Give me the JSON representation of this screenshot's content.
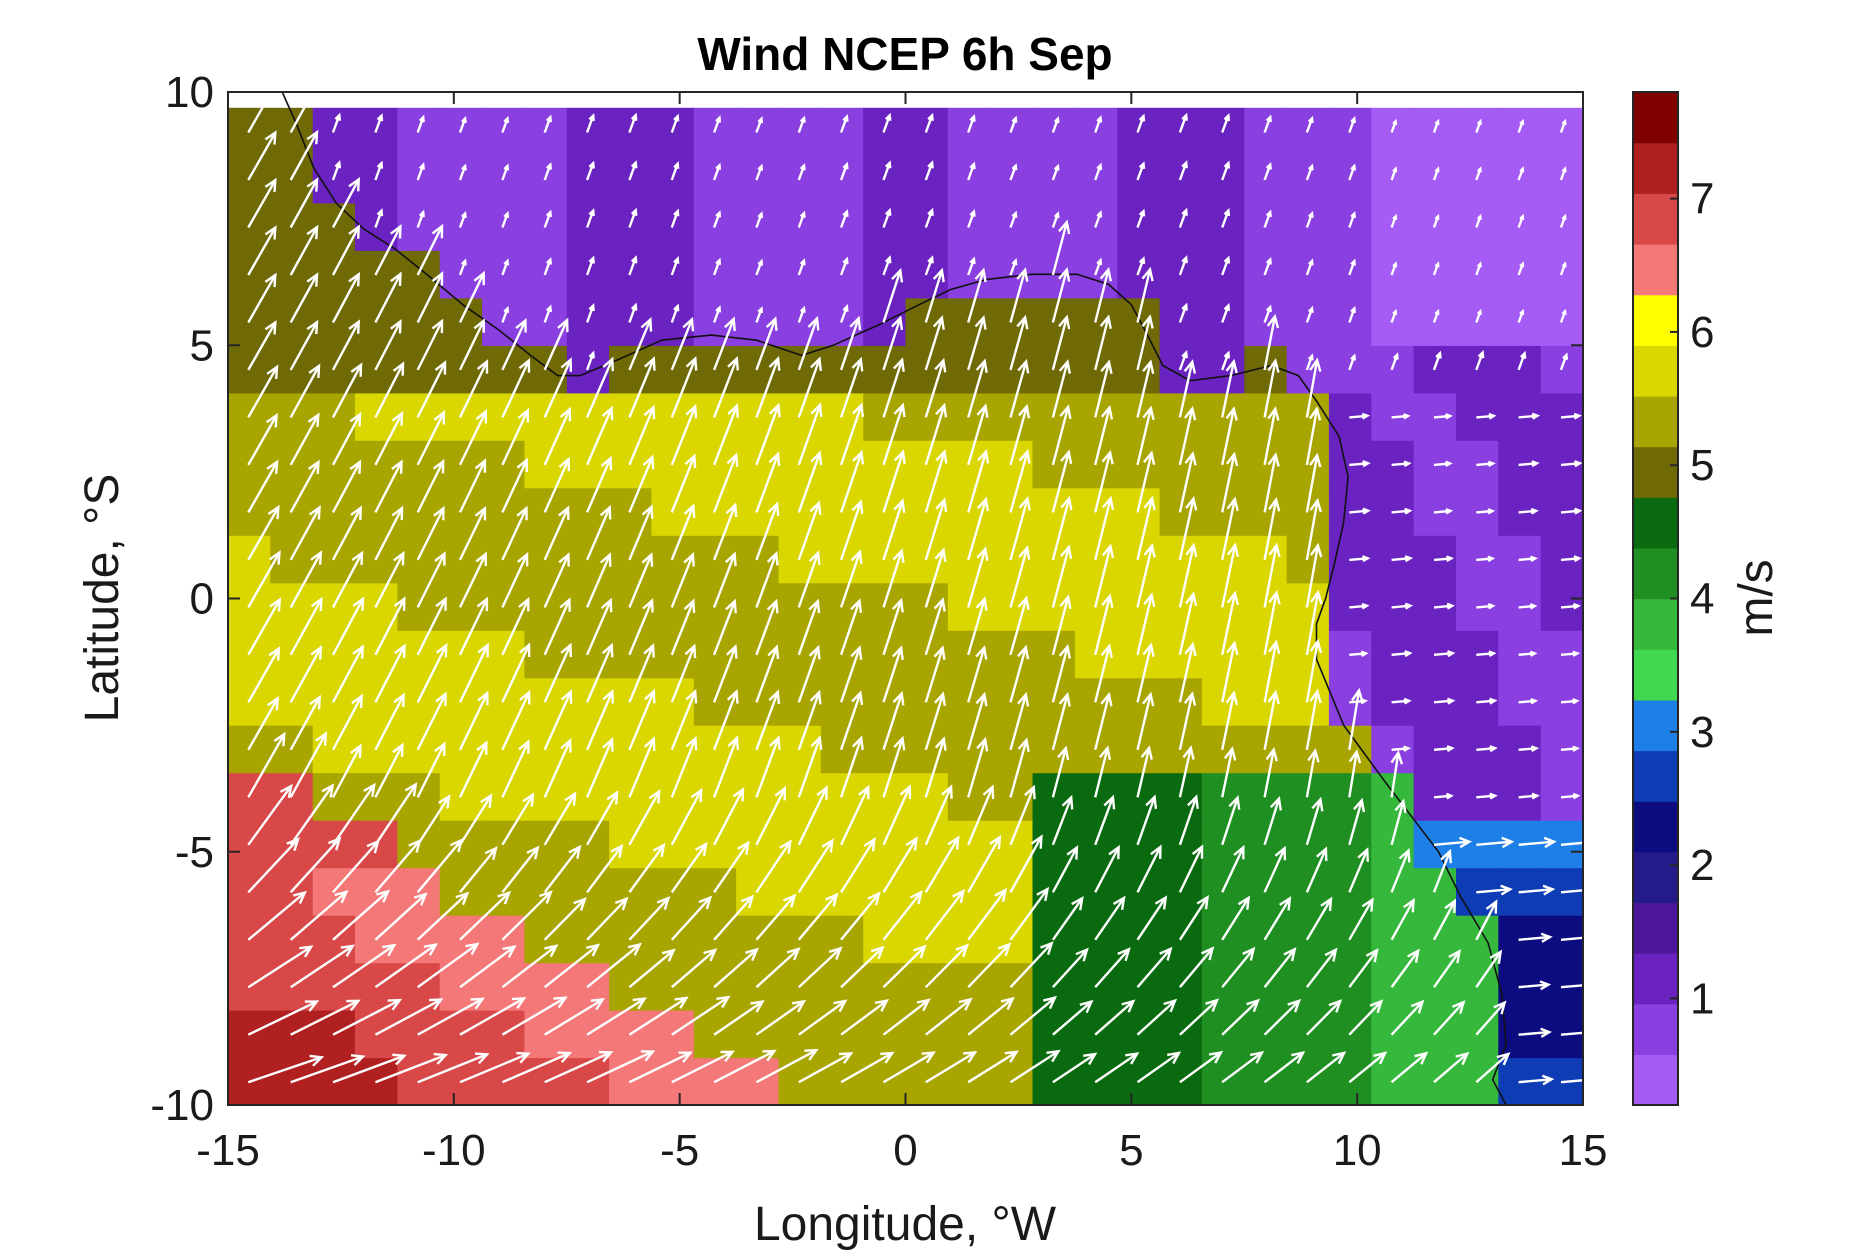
{
  "chart_data": {
    "type": "heatmap",
    "title": "Wind NCEP 6h Sep",
    "xlabel": "Longitude, °W",
    "ylabel": "Latitude, °S",
    "xlim": [
      -15,
      15
    ],
    "ylim": [
      -10,
      10
    ],
    "x_ticks": [
      -15,
      -10,
      -5,
      0,
      5,
      10,
      15
    ],
    "y_ticks": [
      10,
      5,
      0,
      -5,
      -10
    ],
    "colorbar": {
      "label": "m/s",
      "range": [
        0.2,
        7.8
      ],
      "ticks": [
        1,
        2,
        3,
        4,
        5,
        6,
        7
      ],
      "colors": [
        "#a55cf5",
        "#8a3fe0",
        "#6a22c0",
        "#4d169b",
        "#241a8a",
        "#0c0c80",
        "#0e3cb5",
        "#1e7fe6",
        "#3fd84e",
        "#35b83c",
        "#1f8f22",
        "#0a6a0f",
        "#6f6a05",
        "#a8a400",
        "#d9d600",
        "#ffff00",
        "#f47878",
        "#d84848",
        "#b02020",
        "#800000"
      ]
    },
    "grid": false,
    "note": "wind-speed field with white wind-direction arrows and coastline"
  }
}
